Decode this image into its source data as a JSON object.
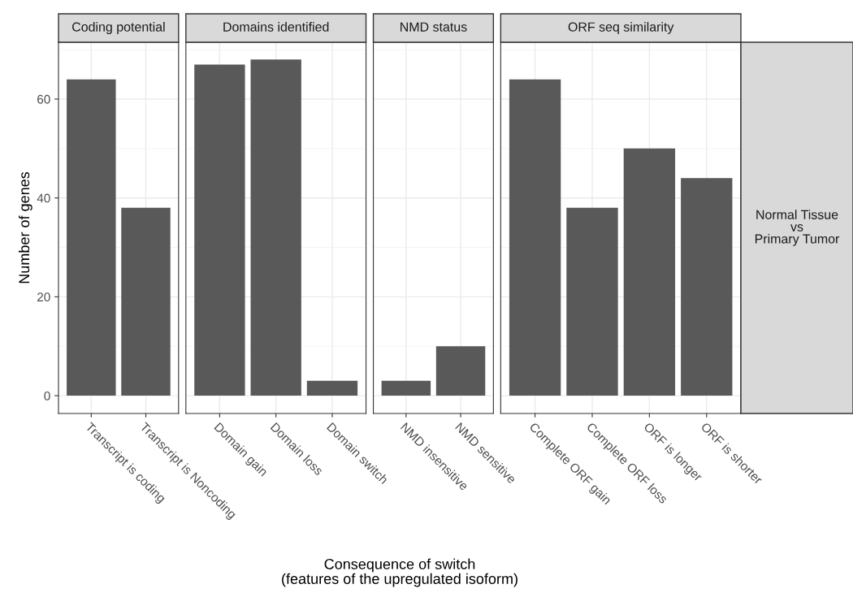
{
  "chart_data": [
    {
      "type": "bar",
      "title": "Coding potential",
      "ylabel": "Number of genes",
      "categories": [
        "Transcript is coding",
        "Transcript is Noncoding"
      ],
      "values": [
        64,
        38
      ],
      "color": "#595959",
      "ylim": [
        -3.6,
        71.5
      ],
      "yticks": [
        0,
        20,
        40,
        60
      ],
      "grid": true,
      "xlabel": "Consequence of switch\n(features of the upregulated isoform)"
    },
    {
      "type": "bar",
      "title": "Domains identified",
      "categories": [
        "Domain gain",
        "Domain loss",
        "Domain switch"
      ],
      "values": [
        67,
        68,
        3
      ],
      "color": "#595959",
      "ylim": [
        -3.6,
        71.5
      ],
      "yticks": [
        0,
        20,
        40,
        60
      ],
      "grid": true,
      "tick_labels": "x"
    },
    {
      "type": "bar",
      "title": "NMD status",
      "categories": [
        "NMD insensitive",
        "NMD sensitive"
      ],
      "values": [
        3,
        10
      ],
      "color": "#595959",
      "ylim": [
        -3.6,
        71.5
      ],
      "yticks": [
        0,
        20,
        40,
        60
      ],
      "grid": true,
      "tick_labels": "x"
    },
    {
      "type": "bar",
      "title": "ORF seq similarity",
      "categories": [
        "Complete ORF gain",
        "Complete ORF loss",
        "ORF is longer",
        "ORF is shorter"
      ],
      "values": [
        64,
        38,
        50,
        44
      ],
      "color": "#595959",
      "ylim": [
        -3.6,
        71.5
      ],
      "yticks": [
        0,
        20,
        40,
        60
      ],
      "grid": true,
      "tick_labels": "x",
      "annotations": [
        "Normal Tissue\nvs\nPrimary Tumor"
      ]
    }
  ]
}
